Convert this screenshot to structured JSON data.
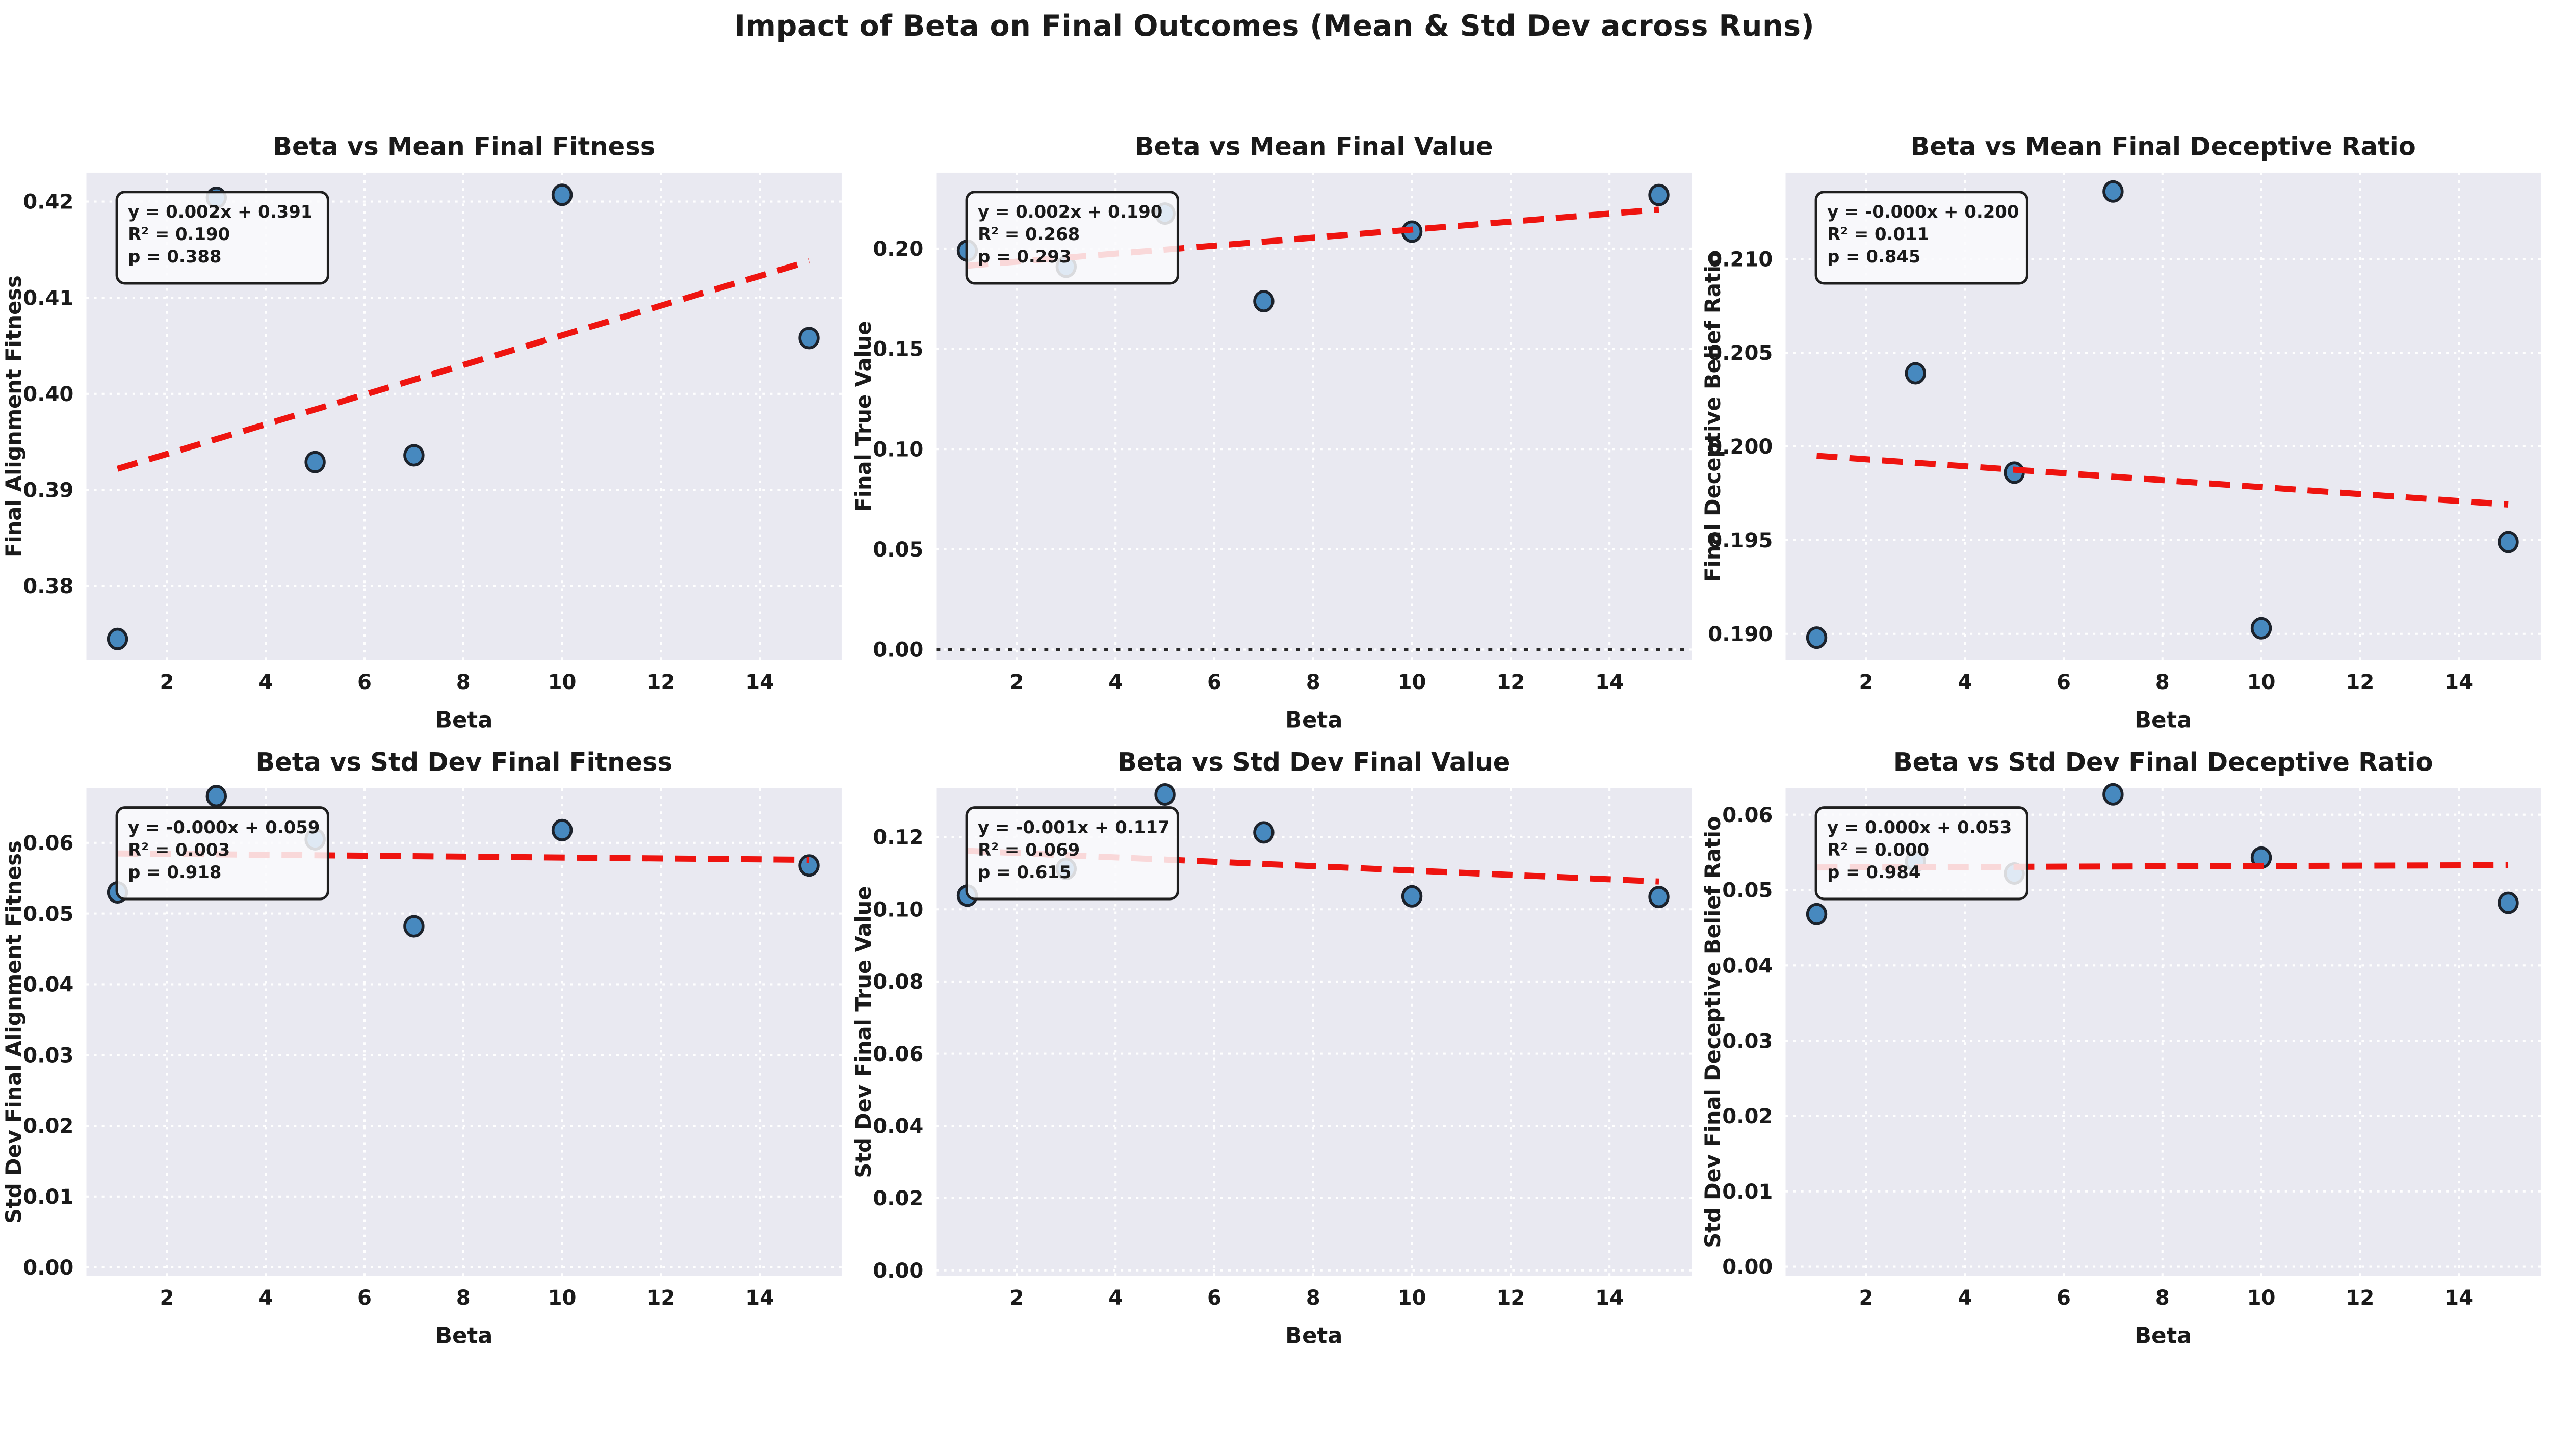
{
  "figure": {
    "title": "Impact of Beta on Final Outcomes (Mean & Std Dev across Runs)"
  },
  "colors": {
    "figure_bg": "#ffffff",
    "plot_bg": "#e9e9f1",
    "grid": "#ffffff",
    "text": "#1a1a1a",
    "point_fill": "#4789bf",
    "point_edge": "#1c222b",
    "line_red": "#ee1410",
    "zero_line": "#2b2b2b",
    "annotation_bg": "rgba(250,250,253,0.85)",
    "annotation_border": "#1f1f1f"
  },
  "chart_data": [
    {
      "type": "scatter",
      "title": "Beta vs Mean Final Fitness",
      "xlabel": "Beta",
      "ylabel": "Final Alignment Fitness",
      "x": [
        1,
        3,
        5,
        7,
        10,
        15
      ],
      "y": [
        0.3745,
        0.4204,
        0.3929,
        0.3936,
        0.4207,
        0.4058
      ],
      "xlim": [
        0.37,
        15.66
      ],
      "ylim": [
        0.3723,
        0.423
      ],
      "xticks": [
        2,
        4,
        6,
        8,
        10,
        12,
        14
      ],
      "yticks": [
        0.38,
        0.39,
        0.4,
        0.41,
        0.42
      ],
      "ytick_decimals": 2,
      "trend": {
        "x1": 1,
        "y1": 0.3922,
        "x2": 15,
        "y2": 0.4138
      },
      "annotation": {
        "line1": "y = 0.002x + 0.391",
        "line2": "R² = 0.190",
        "line3": "p = 0.388"
      },
      "zero_line": false,
      "grid": true,
      "legend": "none"
    },
    {
      "type": "scatter",
      "title": "Beta vs Mean Final Value",
      "xlabel": "Beta",
      "ylabel": "Final True Value",
      "x": [
        1,
        3,
        5,
        7,
        10,
        15
      ],
      "y": [
        0.199,
        0.191,
        0.2175,
        0.1738,
        0.2085,
        0.2268
      ],
      "xlim": [
        0.37,
        15.66
      ],
      "ylim": [
        -0.0053,
        0.2379
      ],
      "xticks": [
        2,
        4,
        6,
        8,
        10,
        12,
        14
      ],
      "yticks": [
        0.0,
        0.05,
        0.1,
        0.15,
        0.2
      ],
      "ytick_decimals": 2,
      "trend": {
        "x1": 1,
        "y1": 0.1915,
        "x2": 15,
        "y2": 0.2195
      },
      "annotation": {
        "line1": "y = 0.002x + 0.190",
        "line2": "R² = 0.268",
        "line3": "p = 0.293"
      },
      "zero_line": true,
      "grid": true,
      "legend": "none"
    },
    {
      "type": "scatter",
      "title": "Beta vs Mean Final Deceptive Ratio",
      "xlabel": "Beta",
      "ylabel": "Final Deceptive Belief Ratio",
      "x": [
        1,
        3,
        5,
        7,
        10,
        15
      ],
      "y": [
        0.1898,
        0.2039,
        0.1986,
        0.2136,
        0.1903,
        0.1949
      ],
      "xlim": [
        0.37,
        15.66
      ],
      "ylim": [
        0.1886,
        0.2146
      ],
      "xticks": [
        2,
        4,
        6,
        8,
        10,
        12,
        14
      ],
      "yticks": [
        0.19,
        0.195,
        0.2,
        0.205,
        0.21
      ],
      "ytick_decimals": 3,
      "trend": {
        "x1": 1,
        "y1": 0.1995,
        "x2": 15,
        "y2": 0.1969
      },
      "annotation": {
        "line1": "y = -0.000x + 0.200",
        "line2": "R² = 0.011",
        "line3": "p = 0.845"
      },
      "zero_line": false,
      "grid": true,
      "legend": "none"
    },
    {
      "type": "scatter",
      "title": "Beta vs Std Dev Final Fitness",
      "xlabel": "Beta",
      "ylabel": "Std Dev Final Alignment Fitness",
      "x": [
        1,
        3,
        5,
        7,
        10,
        15
      ],
      "y": [
        0.053,
        0.0666,
        0.0605,
        0.0482,
        0.0618,
        0.0568
      ],
      "xlim": [
        0.37,
        15.66
      ],
      "ylim": [
        -0.0012,
        0.0677
      ],
      "xticks": [
        2,
        4,
        6,
        8,
        10,
        12,
        14
      ],
      "yticks": [
        0.0,
        0.01,
        0.02,
        0.03,
        0.04,
        0.05,
        0.06
      ],
      "ytick_decimals": 2,
      "trend": {
        "x1": 1,
        "y1": 0.0585,
        "x2": 15,
        "y2": 0.0576
      },
      "annotation": {
        "line1": "y = -0.000x + 0.059",
        "line2": "R² = 0.003",
        "line3": "p = 0.918"
      },
      "zero_line": false,
      "grid": true,
      "legend": "none"
    },
    {
      "type": "scatter",
      "title": "Beta vs Std Dev Final Value",
      "xlabel": "Beta",
      "ylabel": "Std Dev Final True Value",
      "x": [
        1,
        3,
        5,
        7,
        10,
        15
      ],
      "y": [
        0.1038,
        0.1112,
        0.1318,
        0.1213,
        0.1036,
        0.1034
      ],
      "xlim": [
        0.37,
        15.66
      ],
      "ylim": [
        -0.0015,
        0.1335
      ],
      "xticks": [
        2,
        4,
        6,
        8,
        10,
        12,
        14
      ],
      "yticks": [
        0.0,
        0.02,
        0.04,
        0.06,
        0.08,
        0.1,
        0.12
      ],
      "ytick_decimals": 2,
      "trend": {
        "x1": 1,
        "y1": 0.1162,
        "x2": 15,
        "y2": 0.1077
      },
      "annotation": {
        "line1": "y = -0.001x + 0.117",
        "line2": "R² = 0.069",
        "line3": "p = 0.615"
      },
      "zero_line": false,
      "grid": true,
      "legend": "none"
    },
    {
      "type": "scatter",
      "title": "Beta vs Std Dev Final Deceptive Ratio",
      "xlabel": "Beta",
      "ylabel": "Std Dev Final Deceptive Belief Ratio",
      "x": [
        1,
        3,
        5,
        7,
        10,
        15
      ],
      "y": [
        0.0468,
        0.0538,
        0.0522,
        0.0627,
        0.0543,
        0.0483
      ],
      "xlim": [
        0.37,
        15.66
      ],
      "ylim": [
        -0.0012,
        0.0635
      ],
      "xticks": [
        2,
        4,
        6,
        8,
        10,
        12,
        14
      ],
      "yticks": [
        0.0,
        0.01,
        0.02,
        0.03,
        0.04,
        0.05,
        0.06
      ],
      "ytick_decimals": 2,
      "trend": {
        "x1": 1,
        "y1": 0.053,
        "x2": 15,
        "y2": 0.0533
      },
      "annotation": {
        "line1": "y = 0.000x + 0.053",
        "line2": "R² = 0.000",
        "line3": "p = 0.984"
      },
      "zero_line": false,
      "grid": true,
      "legend": "none"
    }
  ]
}
